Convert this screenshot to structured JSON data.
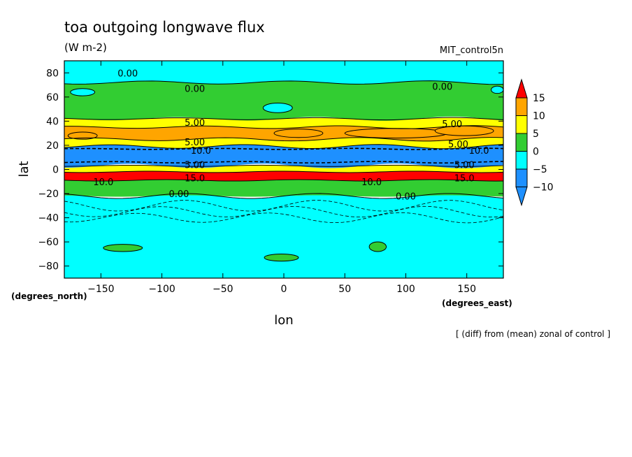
{
  "chart_data": {
    "type": "heatmap",
    "title": "toa outgoing longwave flux",
    "units": "(W m-2)",
    "dataset": "MIT_control5n",
    "xlabel": "lon",
    "ylabel": "lat",
    "x_unit_label": "(degrees_east)",
    "y_unit_label": "(degrees_north)",
    "note": "[ (diff) from (mean) zonal of control ]",
    "xlim": [
      -180,
      180
    ],
    "ylim": [
      -90,
      90
    ],
    "x_ticks": [
      -150,
      -100,
      -50,
      0,
      50,
      100,
      150
    ],
    "y_ticks": [
      -80,
      -60,
      -40,
      -20,
      0,
      20,
      40,
      60,
      80
    ],
    "x_tick_labels": [
      "−150",
      "−100",
      "−50",
      "0",
      "50",
      "100",
      "150"
    ],
    "y_tick_labels": [
      "−80",
      "−60",
      "−40",
      "−20",
      "0",
      "20",
      "40",
      "60",
      "80"
    ],
    "colorbar": {
      "levels": [
        -10,
        -5,
        0,
        5,
        10,
        15
      ],
      "tick_labels": [
        "−10",
        "−5",
        "0",
        "5",
        "10",
        "15"
      ],
      "colors": [
        "#1e90ff",
        "#1e90ff",
        "#00ffff",
        "#32cd32",
        "#ffff00",
        "#ffa500",
        "#ff0000"
      ]
    },
    "bands": [
      {
        "lat_min": -90,
        "lat_max": -22,
        "color": "#00ffff"
      },
      {
        "lat_min": -22,
        "lat_max": -9,
        "color": "#32cd32"
      },
      {
        "lat_min": -9,
        "lat_max": -2,
        "color": "#ff0000"
      },
      {
        "lat_min": -2,
        "lat_max": 3,
        "color": "#ffff00"
      },
      {
        "lat_min": 3,
        "lat_max": 19,
        "color": "#1e90ff"
      },
      {
        "lat_min": 19,
        "lat_max": 25,
        "color": "#ffff00"
      },
      {
        "lat_min": 25,
        "lat_max": 35,
        "color": "#ffa500"
      },
      {
        "lat_min": 35,
        "lat_max": 42,
        "color": "#ffff00"
      },
      {
        "lat_min": 42,
        "lat_max": 72,
        "color": "#32cd32"
      },
      {
        "lat_min": 72,
        "lat_max": 90,
        "color": "#00ffff"
      }
    ],
    "contour_labels": [
      {
        "text": "0.00",
        "lon": -128,
        "lat": 80
      },
      {
        "text": "0.00",
        "lon": -73,
        "lat": 67
      },
      {
        "text": "0.00",
        "lon": 130,
        "lat": 69
      },
      {
        "text": "5.00",
        "lon": -73,
        "lat": 39
      },
      {
        "text": "5.00",
        "lon": 138,
        "lat": 38
      },
      {
        "text": "5.00",
        "lon": -73,
        "lat": 23
      },
      {
        "text": "5.00",
        "lon": 143,
        "lat": 21
      },
      {
        "text": "10.0",
        "lon": -68,
        "lat": 16
      },
      {
        "text": "10.0",
        "lon": 160,
        "lat": 16
      },
      {
        "text": "5.00",
        "lon": -73,
        "lat": 4
      },
      {
        "text": "5.00",
        "lon": 148,
        "lat": 4
      },
      {
        "text": "10.0",
        "lon": -148,
        "lat": -10
      },
      {
        "text": "10.0",
        "lon": 72,
        "lat": -10
      },
      {
        "text": "15.0",
        "lon": -73,
        "lat": -7
      },
      {
        "text": "15.0",
        "lon": 148,
        "lat": -7
      },
      {
        "text": "0.00",
        "lon": -86,
        "lat": -20
      },
      {
        "text": "0.00",
        "lon": 100,
        "lat": -22
      }
    ],
    "patches": [
      {
        "lon": -2,
        "lat": -73,
        "rlon": 14,
        "rlat": 3,
        "color": "#32cd32"
      },
      {
        "lon": -132,
        "lat": -65,
        "rlon": 16,
        "rlat": 3,
        "color": "#32cd32"
      },
      {
        "lon": 77,
        "lat": -64,
        "rlon": 7,
        "rlat": 4,
        "color": "#32cd32"
      },
      {
        "lon": -5,
        "lat": 51,
        "rlon": 12,
        "rlat": 4,
        "color": "#00ffff"
      },
      {
        "lon": -165,
        "lat": 64,
        "rlon": 10,
        "rlat": 3,
        "color": "#00ffff"
      },
      {
        "lon": 175,
        "lat": 66,
        "rlon": 5,
        "rlat": 3,
        "color": "#00ffff"
      },
      {
        "lon": -165,
        "lat": 28,
        "rlon": 12,
        "rlat": 3,
        "color": "#ffa500"
      },
      {
        "lon": 12,
        "lat": 30,
        "rlon": 20,
        "rlat": 3.5,
        "color": "#ffa500"
      },
      {
        "lon": 92,
        "lat": 30,
        "rlon": 42,
        "rlat": 4,
        "color": "#ffa500"
      },
      {
        "lon": 148,
        "lat": 32,
        "rlon": 24,
        "rlat": 4,
        "color": "#ffa500"
      }
    ]
  }
}
